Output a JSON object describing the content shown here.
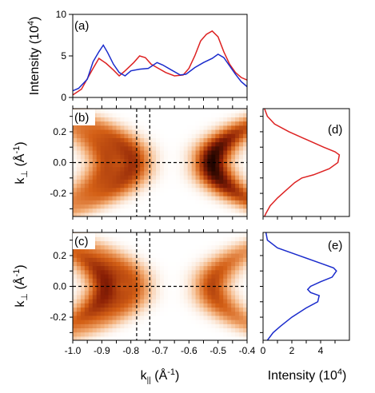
{
  "chart_data": [
    {
      "panel": "(a)",
      "type": "line",
      "ylabel": "Intensity (10",
      "ylabel_exp": "4",
      "ylabel_close": ")",
      "xlim": [
        -1.0,
        -0.4
      ],
      "ylim": [
        0,
        10
      ],
      "yticks": [
        0,
        5,
        10
      ],
      "series": [
        {
          "color": "#dd2222",
          "points": [
            [
              -1.0,
              0.3
            ],
            [
              -0.97,
              1.0
            ],
            [
              -0.93,
              3.5
            ],
            [
              -0.91,
              4.7
            ],
            [
              -0.885,
              4.1
            ],
            [
              -0.86,
              3.3
            ],
            [
              -0.84,
              2.6
            ],
            [
              -0.82,
              3.2
            ],
            [
              -0.79,
              4.2
            ],
            [
              -0.77,
              5.0
            ],
            [
              -0.75,
              4.8
            ],
            [
              -0.73,
              4.0
            ],
            [
              -0.71,
              3.6
            ],
            [
              -0.68,
              3.0
            ],
            [
              -0.65,
              2.6
            ],
            [
              -0.62,
              2.7
            ],
            [
              -0.6,
              3.5
            ],
            [
              -0.58,
              5.0
            ],
            [
              -0.56,
              6.8
            ],
            [
              -0.54,
              7.6
            ],
            [
              -0.52,
              8.0
            ],
            [
              -0.5,
              7.3
            ],
            [
              -0.48,
              5.5
            ],
            [
              -0.46,
              4.0
            ],
            [
              -0.44,
              3.0
            ],
            [
              -0.42,
              2.4
            ],
            [
              -0.4,
              2.1
            ]
          ]
        },
        {
          "color": "#1a2bcc",
          "points": [
            [
              -1.0,
              0.8
            ],
            [
              -0.98,
              1.1
            ],
            [
              -0.95,
              2.2
            ],
            [
              -0.93,
              4.3
            ],
            [
              -0.91,
              5.5
            ],
            [
              -0.895,
              6.3
            ],
            [
              -0.88,
              5.4
            ],
            [
              -0.86,
              4.0
            ],
            [
              -0.84,
              3.0
            ],
            [
              -0.82,
              2.6
            ],
            [
              -0.8,
              3.2
            ],
            [
              -0.77,
              3.4
            ],
            [
              -0.74,
              3.5
            ],
            [
              -0.71,
              4.2
            ],
            [
              -0.69,
              3.9
            ],
            [
              -0.66,
              3.3
            ],
            [
              -0.63,
              2.7
            ],
            [
              -0.61,
              2.8
            ],
            [
              -0.58,
              3.6
            ],
            [
              -0.55,
              4.2
            ],
            [
              -0.52,
              4.7
            ],
            [
              -0.5,
              5.2
            ],
            [
              -0.48,
              4.8
            ],
            [
              -0.46,
              3.8
            ],
            [
              -0.44,
              2.8
            ],
            [
              -0.42,
              1.9
            ],
            [
              -0.4,
              1.3
            ]
          ]
        }
      ]
    },
    {
      "panel": "(b)",
      "type": "heatmap",
      "ylabel_base": "k",
      "ylabel_sub": "⊥",
      "ylabel_unit": " (Å",
      "ylabel_exp": "-1",
      "ylabel_close": ")",
      "xlim": [
        -1.0,
        -0.4
      ],
      "ylim": [
        -0.35,
        0.35
      ],
      "yticks": [
        -0.2,
        0.0,
        0.2
      ],
      "ytick_labels": [
        "-0.2",
        "0.0",
        "0.2"
      ],
      "dashed_v": [
        -0.78,
        -0.735
      ],
      "dashed_h": 0.0,
      "colormap": [
        "#ffffff",
        "#f3b07a",
        "#d46016",
        "#8a1f05",
        "#1f0400"
      ],
      "ridges": [
        {
          "x0": -0.89,
          "amp": 0.55,
          "dir": -1
        },
        {
          "x0": -0.79,
          "amp": 0.65,
          "dir": -1
        },
        {
          "x0": -0.52,
          "amp": 1.0,
          "dir": 1
        }
      ]
    },
    {
      "panel": "(c)",
      "type": "heatmap",
      "ylabel_base": "k",
      "ylabel_sub": "⊥",
      "ylabel_unit": " (Å",
      "ylabel_exp": "-1",
      "ylabel_close": ")",
      "xlabel_base": "k",
      "xlabel_sub": "||",
      "xlabel_unit": " (Å",
      "xlabel_exp": "-1",
      "xlabel_close": ")",
      "xlim": [
        -1.0,
        -0.4
      ],
      "ylim": [
        -0.35,
        0.35
      ],
      "xticks": [
        -1.0,
        -0.9,
        -0.8,
        -0.7,
        -0.6,
        -0.5,
        -0.4
      ],
      "xtick_labels": [
        "-1.0",
        "-0.9",
        "-0.8",
        "-0.7",
        "-0.6",
        "-0.5",
        "-0.4"
      ],
      "yticks": [
        -0.2,
        0.0,
        0.2
      ],
      "ytick_labels": [
        "-0.2",
        "0.0",
        "0.2"
      ],
      "dashed_v": [
        -0.78,
        -0.735
      ],
      "dashed_h": 0.0,
      "colormap": [
        "#ffffff",
        "#f3b07a",
        "#d46016",
        "#8a1f05",
        "#1f0400"
      ],
      "ridges": [
        {
          "x0": -0.89,
          "amp": 0.75,
          "dir": -1
        },
        {
          "x0": -0.79,
          "amp": 0.5,
          "dir": -1
        },
        {
          "x0": -0.52,
          "amp": 0.6,
          "dir": 1
        }
      ]
    },
    {
      "panel": "(d)",
      "type": "line",
      "orientation": "vertical",
      "ylim": [
        -0.35,
        0.35
      ],
      "xlim": [
        0,
        6
      ],
      "series": [
        {
          "color": "#dd2222",
          "points": [
            [
              0.1,
              0.35
            ],
            [
              0.3,
              0.3
            ],
            [
              0.8,
              0.25
            ],
            [
              1.8,
              0.2
            ],
            [
              3.0,
              0.15
            ],
            [
              4.2,
              0.1
            ],
            [
              5.0,
              0.07
            ],
            [
              5.3,
              0.05
            ],
            [
              5.2,
              0.0
            ],
            [
              4.6,
              -0.04
            ],
            [
              3.5,
              -0.08
            ],
            [
              2.7,
              -0.1
            ],
            [
              2.2,
              -0.13
            ],
            [
              1.6,
              -0.18
            ],
            [
              1.0,
              -0.23
            ],
            [
              0.5,
              -0.28
            ],
            [
              0.2,
              -0.33
            ],
            [
              0.1,
              -0.35
            ]
          ]
        }
      ]
    },
    {
      "panel": "(e)",
      "type": "line",
      "orientation": "vertical",
      "xlabel": "Intensity (10",
      "xlabel_exp": "4",
      "xlabel_close": ")",
      "ylim": [
        -0.35,
        0.35
      ],
      "xlim": [
        0,
        6
      ],
      "xticks": [
        0,
        2,
        4
      ],
      "xtick_labels": [
        "0",
        "2",
        "4"
      ],
      "series": [
        {
          "color": "#1a2bcc",
          "points": [
            [
              0.2,
              0.35
            ],
            [
              0.3,
              0.3
            ],
            [
              1.0,
              0.25
            ],
            [
              2.5,
              0.2
            ],
            [
              4.0,
              0.15
            ],
            [
              4.9,
              0.12
            ],
            [
              5.1,
              0.1
            ],
            [
              4.8,
              0.06
            ],
            [
              4.0,
              0.03
            ],
            [
              3.3,
              0.0
            ],
            [
              3.1,
              -0.02
            ],
            [
              3.3,
              -0.04
            ],
            [
              3.9,
              -0.06
            ],
            [
              3.8,
              -0.1
            ],
            [
              3.0,
              -0.14
            ],
            [
              2.0,
              -0.2
            ],
            [
              1.2,
              -0.26
            ],
            [
              0.7,
              -0.3
            ],
            [
              0.3,
              -0.35
            ]
          ]
        }
      ]
    }
  ]
}
